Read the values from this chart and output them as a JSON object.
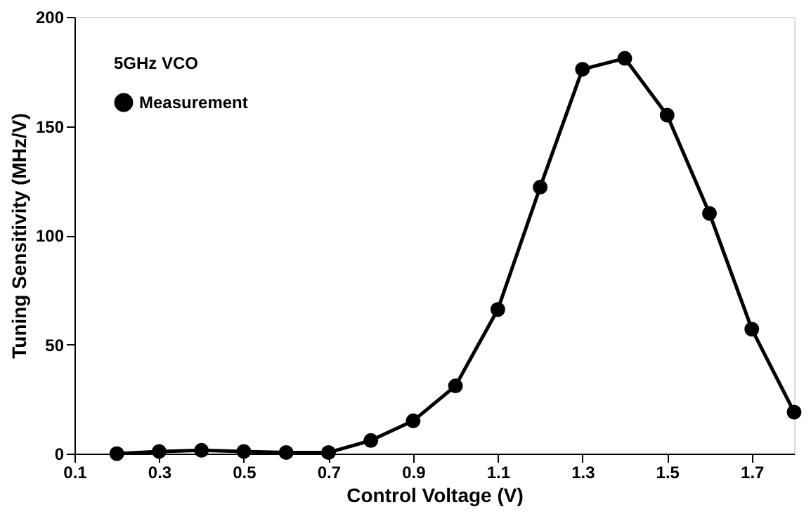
{
  "chart_data": {
    "type": "line",
    "xlabel": "Control Voltage (V)",
    "ylabel": "Tuning Sensitivity (MHz/V)",
    "legend_title": "5GHz VCO",
    "x": [
      0.2,
      0.3,
      0.4,
      0.5,
      0.6,
      0.7,
      0.8,
      0.9,
      1.0,
      1.1,
      1.2,
      1.3,
      1.4,
      1.5,
      1.6,
      1.7,
      1.8
    ],
    "series": [
      {
        "name": "Measurement",
        "color": "#000000",
        "values": [
          0,
          1,
          1.5,
          1,
          0.5,
          0.5,
          6,
          15,
          31,
          66,
          122,
          176,
          181,
          155,
          110,
          57,
          19
        ]
      }
    ],
    "xlim": [
      0.1,
      1.8
    ],
    "xticks": [
      0.1,
      0.3,
      0.5,
      0.7,
      0.9,
      1.1,
      1.3,
      1.5,
      1.7
    ],
    "ylim": [
      0,
      200
    ],
    "yticks": [
      0,
      50,
      100,
      150,
      200
    ],
    "marker": "circle",
    "line_style": "solid",
    "grid": false,
    "legend": "top left"
  }
}
